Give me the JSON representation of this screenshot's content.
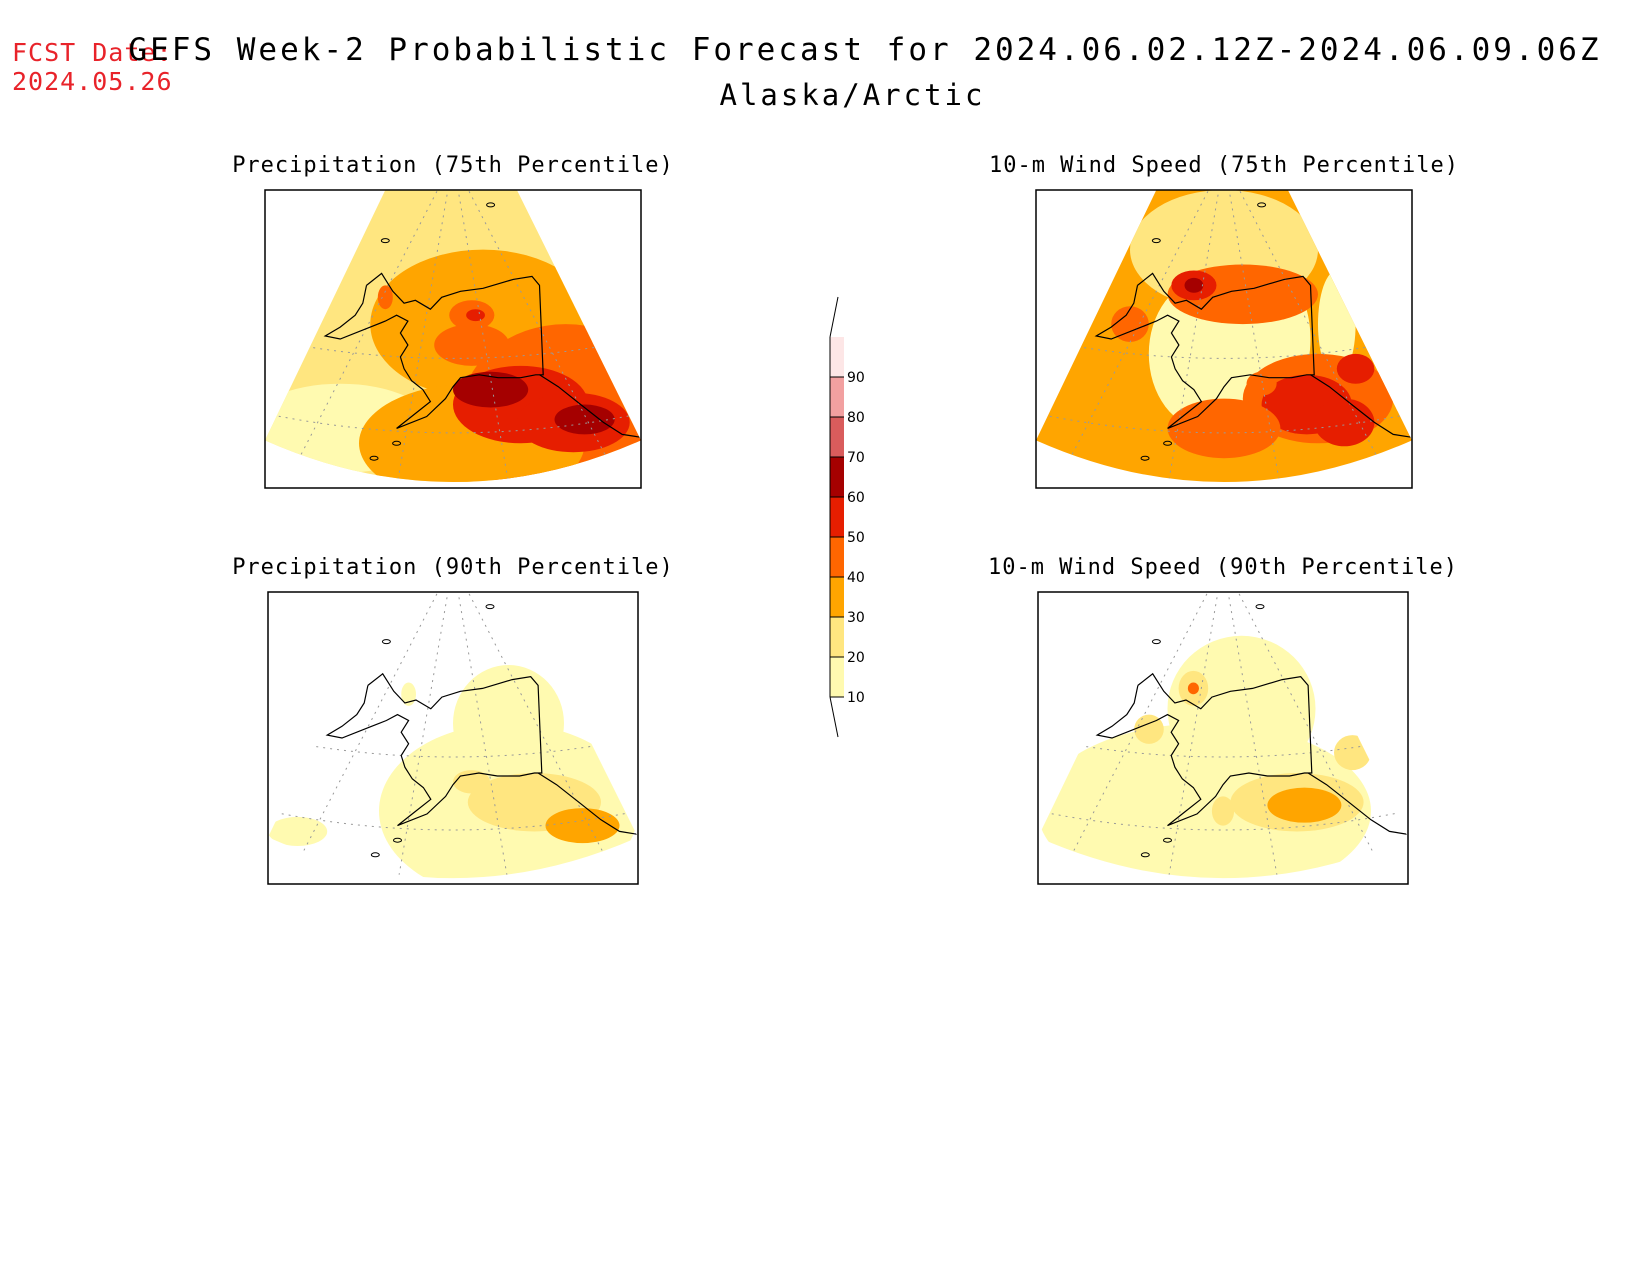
{
  "header": {
    "fcst_label": "FCST Date:",
    "fcst_date": "2024.05.26",
    "title": "GEFS Week-2 Probabilistic Forecast for 2024.06.02.12Z-2024.06.09.06Z",
    "region": "Alaska/Arctic"
  },
  "panels": [
    {
      "title": "Precipitation (75th Percentile)",
      "variable": "precipitation",
      "percentile": 75,
      "intensity": "high",
      "hotspot": "Gulf of Alaska / Southcentral coast"
    },
    {
      "title": "10-m Wind Speed (75th Percentile)",
      "variable": "wind",
      "percentile": 75,
      "intensity": "high",
      "hotspot": "Southcentral Alaska / North Slope"
    },
    {
      "title": "Precipitation (90th Percentile)",
      "variable": "precipitation",
      "percentile": 90,
      "intensity": "low",
      "hotspot": "Southcentral coast"
    },
    {
      "title": "10-m Wind Speed (90th Percentile)",
      "variable": "wind",
      "percentile": 90,
      "intensity": "low",
      "hotspot": "Southcentral Alaska"
    }
  ],
  "colorbar": {
    "labels": [
      "10",
      "20",
      "30",
      "40",
      "50",
      "60",
      "70",
      "80",
      "90"
    ],
    "colors": [
      "#fffab0",
      "#ffe680",
      "#ffa500",
      "#ff6600",
      "#e61e00",
      "#a50000",
      "#d95c5c",
      "#f2a0a0",
      "#fde6e6"
    ]
  }
}
